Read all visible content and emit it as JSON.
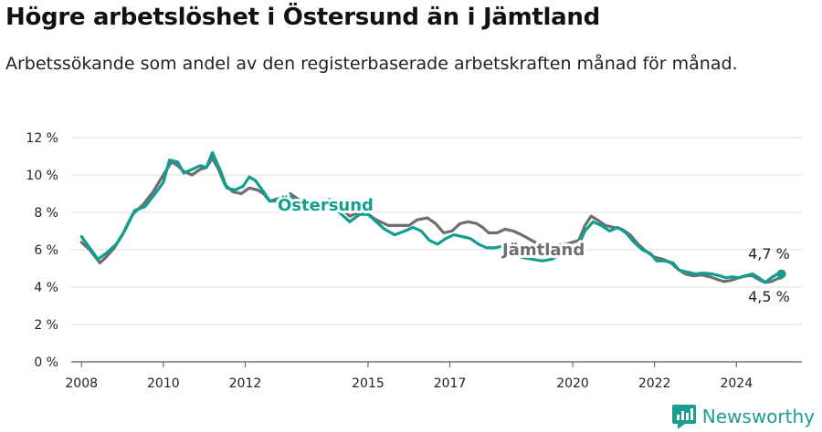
{
  "title": "Högre arbetslöshet i Östersund än i Jämtland",
  "subtitle": "Arbetssökande som andel av den registerbaserade arbetskraften månad för månad.",
  "brand": {
    "name": "Newsworthy",
    "color": "#1a9e8f"
  },
  "chart_data": {
    "type": "line",
    "x_unit": "year",
    "xlim": [
      2007.75,
      2025.6
    ],
    "ylim": [
      0,
      12
    ],
    "y_ticks": [
      0,
      2,
      4,
      6,
      8,
      10,
      12
    ],
    "y_tick_labels": [
      "0 %",
      "2 %",
      "4 %",
      "6 %",
      "8 %",
      "10 %",
      "12 %"
    ],
    "x_ticks": [
      2008,
      2010,
      2012,
      2015,
      2017,
      2020,
      2022,
      2024
    ],
    "x_tick_labels": [
      "2008",
      "2010",
      "2012",
      "2015",
      "2017",
      "2020",
      "2022",
      "2024"
    ],
    "grid": true,
    "legend": "inline labels",
    "series": [
      {
        "name": "Jämtland",
        "color": "#6e6e72",
        "label": "Jämtland",
        "end_label": "4,5 %",
        "points": [
          [
            2008.0,
            6.4
          ],
          [
            2008.2,
            6.0
          ],
          [
            2008.45,
            5.3
          ],
          [
            2008.6,
            5.6
          ],
          [
            2008.8,
            6.1
          ],
          [
            2009.0,
            6.8
          ],
          [
            2009.25,
            7.9
          ],
          [
            2009.5,
            8.4
          ],
          [
            2009.75,
            9.1
          ],
          [
            2010.0,
            10.0
          ],
          [
            2010.2,
            10.7
          ],
          [
            2010.35,
            10.5
          ],
          [
            2010.5,
            10.2
          ],
          [
            2010.7,
            10.0
          ],
          [
            2010.9,
            10.3
          ],
          [
            2011.05,
            10.4
          ],
          [
            2011.2,
            10.9
          ],
          [
            2011.35,
            10.3
          ],
          [
            2011.5,
            9.5
          ],
          [
            2011.7,
            9.1
          ],
          [
            2011.9,
            9.0
          ],
          [
            2012.1,
            9.3
          ],
          [
            2012.3,
            9.2
          ],
          [
            2012.45,
            9.0
          ],
          [
            2012.6,
            8.6
          ],
          [
            2012.9,
            8.8
          ],
          [
            2013.1,
            9.0
          ],
          [
            2013.3,
            8.7
          ],
          [
            2013.5,
            8.3
          ],
          [
            2013.8,
            8.4
          ],
          [
            2014.1,
            8.6
          ],
          [
            2014.3,
            8.3
          ],
          [
            2014.55,
            7.8
          ],
          [
            2014.8,
            8.0
          ],
          [
            2015.0,
            7.9
          ],
          [
            2015.2,
            7.6
          ],
          [
            2015.5,
            7.3
          ],
          [
            2015.8,
            7.3
          ],
          [
            2016.0,
            7.3
          ],
          [
            2016.2,
            7.6
          ],
          [
            2016.45,
            7.7
          ],
          [
            2016.65,
            7.4
          ],
          [
            2016.85,
            6.9
          ],
          [
            2017.05,
            7.0
          ],
          [
            2017.25,
            7.4
          ],
          [
            2017.45,
            7.5
          ],
          [
            2017.65,
            7.4
          ],
          [
            2017.8,
            7.2
          ],
          [
            2017.95,
            6.9
          ],
          [
            2018.15,
            6.9
          ],
          [
            2018.35,
            7.1
          ],
          [
            2018.55,
            7.0
          ],
          [
            2018.75,
            6.8
          ],
          [
            2019.0,
            6.5
          ],
          [
            2019.25,
            6.2
          ],
          [
            2019.55,
            6.2
          ],
          [
            2019.85,
            6.3
          ],
          [
            2020.0,
            6.4
          ],
          [
            2020.15,
            6.5
          ],
          [
            2020.3,
            7.3
          ],
          [
            2020.45,
            7.8
          ],
          [
            2020.6,
            7.6
          ],
          [
            2020.8,
            7.3
          ],
          [
            2021.0,
            7.2
          ],
          [
            2021.2,
            7.1
          ],
          [
            2021.4,
            6.8
          ],
          [
            2021.6,
            6.3
          ],
          [
            2021.8,
            5.9
          ],
          [
            2022.0,
            5.6
          ],
          [
            2022.2,
            5.5
          ],
          [
            2022.4,
            5.3
          ],
          [
            2022.55,
            5.0
          ],
          [
            2022.75,
            4.7
          ],
          [
            2022.95,
            4.6
          ],
          [
            2023.15,
            4.65
          ],
          [
            2023.35,
            4.55
          ],
          [
            2023.55,
            4.4
          ],
          [
            2023.7,
            4.3
          ],
          [
            2023.85,
            4.35
          ],
          [
            2024.05,
            4.5
          ],
          [
            2024.25,
            4.6
          ],
          [
            2024.4,
            4.6
          ],
          [
            2024.55,
            4.4
          ],
          [
            2024.7,
            4.25
          ],
          [
            2024.85,
            4.3
          ],
          [
            2025.0,
            4.45
          ],
          [
            2025.1,
            4.5
          ]
        ]
      },
      {
        "name": "Östersund",
        "color": "#109e8e",
        "label": "Östersund",
        "end_label": "4,7 %",
        "points": [
          [
            2008.0,
            6.7
          ],
          [
            2008.2,
            6.1
          ],
          [
            2008.4,
            5.5
          ],
          [
            2008.6,
            5.8
          ],
          [
            2008.85,
            6.3
          ],
          [
            2009.05,
            7.0
          ],
          [
            2009.3,
            8.1
          ],
          [
            2009.55,
            8.3
          ],
          [
            2009.8,
            9.0
          ],
          [
            2010.0,
            9.6
          ],
          [
            2010.15,
            10.8
          ],
          [
            2010.35,
            10.7
          ],
          [
            2010.5,
            10.1
          ],
          [
            2010.7,
            10.3
          ],
          [
            2010.9,
            10.5
          ],
          [
            2011.05,
            10.4
          ],
          [
            2011.2,
            11.2
          ],
          [
            2011.4,
            10.2
          ],
          [
            2011.55,
            9.3
          ],
          [
            2011.75,
            9.2
          ],
          [
            2011.95,
            9.4
          ],
          [
            2012.1,
            9.9
          ],
          [
            2012.25,
            9.7
          ],
          [
            2012.45,
            9.1
          ],
          [
            2012.6,
            8.6
          ],
          [
            2012.9,
            8.6
          ],
          [
            2013.1,
            8.9
          ],
          [
            2013.3,
            8.5
          ],
          [
            2013.55,
            8.1
          ],
          [
            2013.8,
            8.3
          ],
          [
            2014.05,
            8.7
          ],
          [
            2014.3,
            8.0
          ],
          [
            2014.55,
            7.5
          ],
          [
            2014.8,
            7.9
          ],
          [
            2015.0,
            7.9
          ],
          [
            2015.2,
            7.5
          ],
          [
            2015.4,
            7.1
          ],
          [
            2015.65,
            6.8
          ],
          [
            2015.9,
            7.0
          ],
          [
            2016.1,
            7.2
          ],
          [
            2016.3,
            7.0
          ],
          [
            2016.5,
            6.5
          ],
          [
            2016.7,
            6.3
          ],
          [
            2016.9,
            6.6
          ],
          [
            2017.1,
            6.8
          ],
          [
            2017.3,
            6.7
          ],
          [
            2017.5,
            6.6
          ],
          [
            2017.7,
            6.3
          ],
          [
            2017.9,
            6.1
          ],
          [
            2018.1,
            6.1
          ],
          [
            2018.3,
            6.2
          ],
          [
            2018.5,
            5.9
          ],
          [
            2018.75,
            5.6
          ],
          [
            2019.0,
            5.5
          ],
          [
            2019.25,
            5.4
          ],
          [
            2019.5,
            5.5
          ],
          [
            2019.8,
            5.9
          ],
          [
            2020.0,
            6.0
          ],
          [
            2020.15,
            6.3
          ],
          [
            2020.3,
            7.0
          ],
          [
            2020.5,
            7.5
          ],
          [
            2020.7,
            7.3
          ],
          [
            2020.9,
            7.0
          ],
          [
            2021.1,
            7.2
          ],
          [
            2021.3,
            6.9
          ],
          [
            2021.5,
            6.4
          ],
          [
            2021.7,
            6.0
          ],
          [
            2021.9,
            5.8
          ],
          [
            2022.05,
            5.4
          ],
          [
            2022.25,
            5.4
          ],
          [
            2022.45,
            5.3
          ],
          [
            2022.6,
            4.9
          ],
          [
            2022.8,
            4.8
          ],
          [
            2023.0,
            4.7
          ],
          [
            2023.2,
            4.75
          ],
          [
            2023.4,
            4.7
          ],
          [
            2023.6,
            4.6
          ],
          [
            2023.75,
            4.5
          ],
          [
            2023.9,
            4.55
          ],
          [
            2024.05,
            4.5
          ],
          [
            2024.2,
            4.6
          ],
          [
            2024.4,
            4.7
          ],
          [
            2024.55,
            4.5
          ],
          [
            2024.7,
            4.25
          ],
          [
            2024.85,
            4.5
          ],
          [
            2025.0,
            4.7
          ],
          [
            2025.1,
            4.7
          ]
        ]
      }
    ]
  }
}
